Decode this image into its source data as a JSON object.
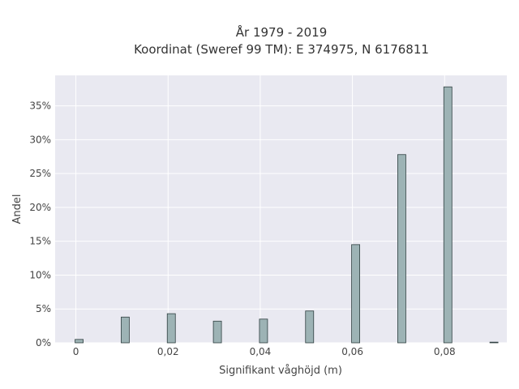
{
  "chart_data": {
    "type": "bar",
    "title_line1": "År 1979 - 2019",
    "title_line2": "Koordinat (Sweref 99 TM): E 374975, N 6176811",
    "xlabel": "Signifikant våghöjd (m)",
    "ylabel": "Andel",
    "x": [
      0,
      0.01,
      0.02,
      0.03,
      0.04,
      0.05,
      0.06,
      0.07,
      0.08,
      0.09
    ],
    "values": [
      0.5,
      3.8,
      4.3,
      3.2,
      3.5,
      4.7,
      14.5,
      27.8,
      37.8,
      0.1
    ],
    "xlim": [
      -0.0045,
      0.0935
    ],
    "ylim": [
      0,
      39.5
    ],
    "xticks": [
      0,
      0.02,
      0.04,
      0.06,
      0.08
    ],
    "xtick_labels": [
      "0",
      "0,02",
      "0,04",
      "0,06",
      "0,08"
    ],
    "yticks": [
      0,
      5,
      10,
      15,
      20,
      25,
      30,
      35
    ],
    "ytick_labels": [
      "0%",
      "5%",
      "10%",
      "15%",
      "20%",
      "25%",
      "30%",
      "35%"
    ],
    "grid": true,
    "colors": {
      "bar_fill": "#9db3b5",
      "bar_edge": "#2f3f40",
      "plot_bg": "#e9e9f1",
      "grid": "#ffffff"
    }
  }
}
